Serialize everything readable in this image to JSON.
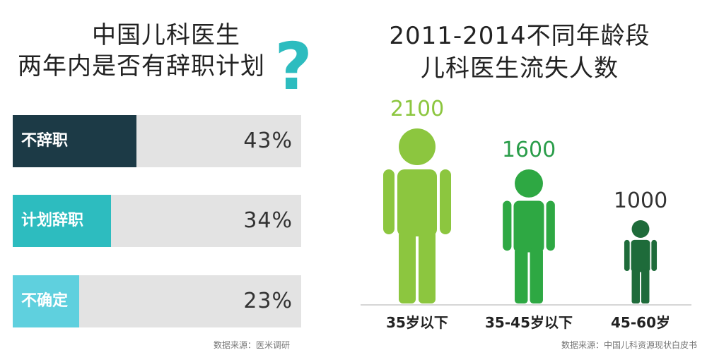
{
  "left": {
    "title_line1": "中国儿科医生",
    "title_line2": "两年内是否有辞职计划",
    "question_mark": "?",
    "source": "数据来源：医米调研"
  },
  "right": {
    "title_line1": "2011-2014不同年龄段",
    "title_line2": "儿科医生流失人数",
    "source": "数据来源：中国儿科资源现状白皮书"
  },
  "colors": {
    "bar1": "#1c3a46",
    "bar2": "#2dbcbf",
    "bar3": "#5fd0de",
    "fig1": "#8cc63f",
    "fig2": "#2ea843",
    "fig3": "#1e6b3a",
    "label1": "#8cc63f",
    "label2": "#2a9d4a",
    "label3": "#333333"
  },
  "chart_data": [
    {
      "type": "bar",
      "orientation": "horizontal",
      "categories": [
        "不辞职",
        "计划辞职",
        "不确定"
      ],
      "values": [
        43,
        34,
        23
      ],
      "value_labels": [
        "43%",
        "34%",
        "23%"
      ],
      "title": "中国儿科医生两年内是否有辞职计划"
    },
    {
      "type": "bar",
      "style": "pictograph",
      "categories": [
        "35岁以下",
        "35-45岁以下",
        "45-60岁"
      ],
      "values": [
        2100,
        1600,
        1000
      ],
      "value_labels": [
        "2100",
        "1600",
        "1000"
      ],
      "title": "2011-2014不同年龄段儿科医生流失人数"
    }
  ]
}
